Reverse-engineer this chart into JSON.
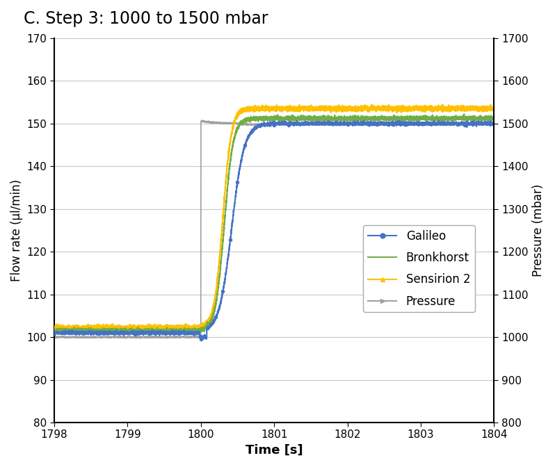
{
  "title": "C. Step 3: 1000 to 1500 mbar",
  "xlabel": "Time [s]",
  "ylabel_left": "Flow rate (μl/min)",
  "ylabel_right": "Pressure (mbar)",
  "xlim": [
    1798,
    1804
  ],
  "ylim_left": [
    80,
    170
  ],
  "ylim_right": [
    800,
    1700
  ],
  "xticks": [
    1798,
    1799,
    1800,
    1801,
    1802,
    1803,
    1804
  ],
  "yticks_left": [
    80,
    90,
    100,
    110,
    120,
    130,
    140,
    150,
    160,
    170
  ],
  "yticks_right": [
    800,
    900,
    1000,
    1100,
    1200,
    1300,
    1400,
    1500,
    1600,
    1700
  ],
  "title_fontsize": 17,
  "label_fontsize": 12,
  "tick_fontsize": 11,
  "legend_fontsize": 12,
  "background_color": "#ffffff",
  "grid_color": "#c8c8c8",
  "galileo_color": "#4472C4",
  "bronkhorst_color": "#70AD47",
  "sensirion2_color": "#FFC000",
  "pressure_color": "#A0A0A0"
}
